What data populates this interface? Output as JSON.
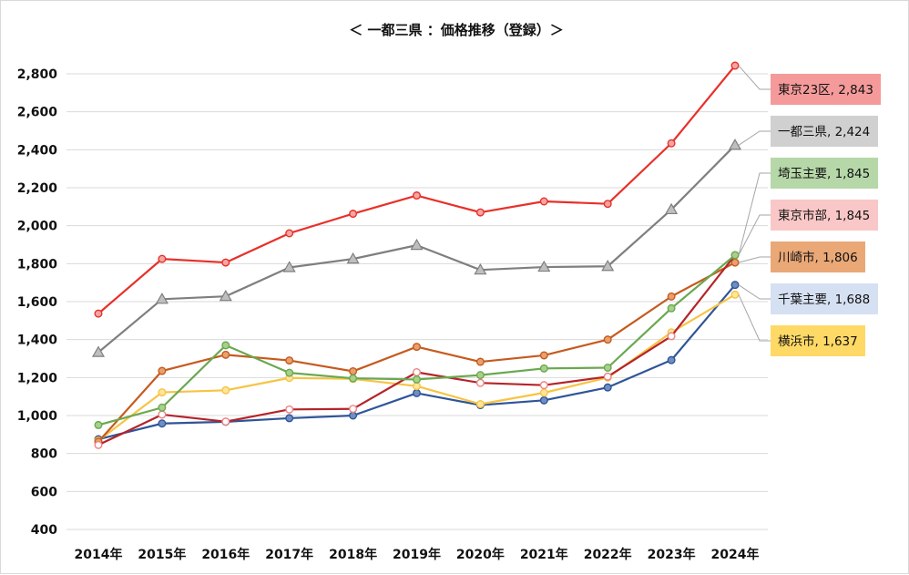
{
  "chart_data": {
    "type": "line",
    "title": "＜ 一都三県 ：価格推移（登録）＞",
    "xlabel": "",
    "ylabel": "",
    "ylim": [
      400,
      2900
    ],
    "yticks": [
      400,
      600,
      800,
      1000,
      1200,
      1400,
      1600,
      1800,
      2000,
      2200,
      2400,
      2600,
      2800
    ],
    "ytick_labels": [
      "400",
      "600",
      "800",
      "1,000",
      "1,200",
      "1,400",
      "1,600",
      "1,800",
      "2,000",
      "2,200",
      "2,400",
      "2,600",
      "2,800"
    ],
    "categories": [
      "2014年",
      "2015年",
      "2016年",
      "2017年",
      "2018年",
      "2019年",
      "2020年",
      "2021年",
      "2022年",
      "2023年",
      "2024年"
    ],
    "grid": true,
    "legend": "data labels at right end",
    "series": [
      {
        "name": "東京23区",
        "color": "#e8302a",
        "marker": "circle",
        "marker_fill": "#f4a6a2",
        "values": [
          1537,
          1825,
          1806,
          1960,
          2063,
          2159,
          2070,
          2128,
          2115,
          2434,
          2843
        ],
        "end_label": "東京23区, 2,843",
        "label_bg": "#f59a9a"
      },
      {
        "name": "一都三県",
        "color": "#7f7f7f",
        "marker": "triangle",
        "marker_fill": "#bfbfbf",
        "values": [
          1333,
          1613,
          1628,
          1780,
          1825,
          1897,
          1767,
          1782,
          1786,
          2085,
          2424
        ],
        "end_label": "一都三県, 2,424",
        "label_bg": "#d0d0d0"
      },
      {
        "name": "埼玉主要",
        "color": "#6aa84f",
        "marker": "circle",
        "marker_fill": "#a8d08d",
        "values": [
          950,
          1042,
          1370,
          1225,
          1196,
          1190,
          1213,
          1248,
          1252,
          1565,
          1845
        ],
        "end_label": "埼玉主要, 1,845",
        "label_bg": "#b6d7a8"
      },
      {
        "name": "東京市部",
        "color": "#b5242a",
        "marker": "circle",
        "marker_fill": "#ffffff",
        "marker_stroke": "#f08080",
        "values": [
          845,
          1005,
          968,
          1032,
          1035,
          1228,
          1172,
          1160,
          1205,
          1418,
          1845
        ],
        "end_label": "東京市部, 1,845",
        "label_bg": "#f9c7c7"
      },
      {
        "name": "川崎市",
        "color": "#c65a1e",
        "marker": "circle",
        "marker_fill": "#e9a06e",
        "values": [
          862,
          1235,
          1320,
          1290,
          1233,
          1362,
          1283,
          1317,
          1400,
          1627,
          1806
        ],
        "end_label": "川崎市, 1,806",
        "label_bg": "#eaa877"
      },
      {
        "name": "千葉主要",
        "color": "#2f5597",
        "marker": "circle",
        "marker_fill": "#6f8fc4",
        "values": [
          875,
          958,
          967,
          986,
          1000,
          1118,
          1055,
          1080,
          1148,
          1292,
          1688
        ],
        "end_label": "千葉主要, 1,688",
        "label_bg": "#d6e0f3"
      },
      {
        "name": "横浜市",
        "color": "#f6c445",
        "marker": "circle",
        "marker_fill": "#ffe699",
        "values": [
          868,
          1122,
          1133,
          1198,
          1193,
          1155,
          1060,
          1120,
          1200,
          1438,
          1637
        ],
        "end_label": "横浜市, 1,637",
        "label_bg": "#ffd966"
      }
    ]
  }
}
